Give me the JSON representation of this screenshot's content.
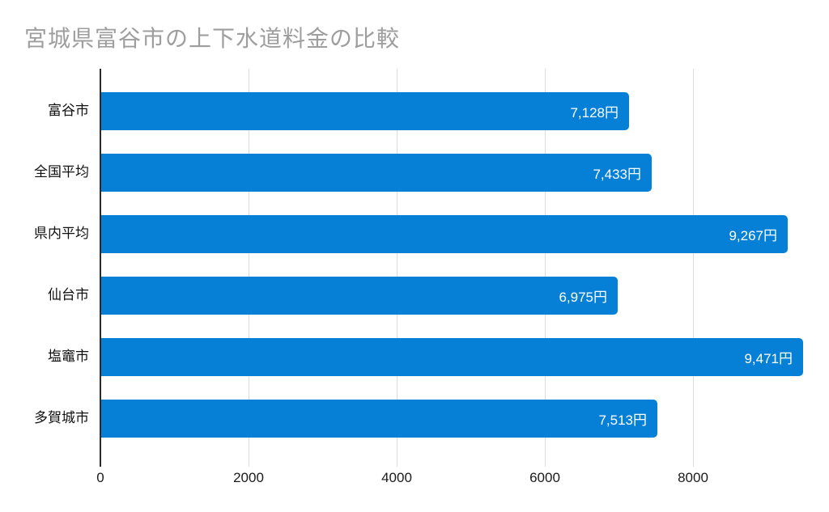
{
  "chart_data": {
    "type": "bar",
    "orientation": "horizontal",
    "title": "宮城県富谷市の上下水道料金の比較",
    "categories": [
      "富谷市",
      "全国平均",
      "県内平均",
      "仙台市",
      "塩竈市",
      "多賀城市"
    ],
    "values": [
      7128,
      7433,
      9267,
      6975,
      9471,
      7513
    ],
    "value_labels": [
      "7,128円",
      "7,433円",
      "9,267円",
      "6,975円",
      "9,471円",
      "7,513円"
    ],
    "x_ticks": [
      0,
      2000,
      4000,
      6000,
      8000
    ],
    "xlim": [
      0,
      9580
    ],
    "grid": true,
    "legend": "none",
    "xlabel": "",
    "ylabel": "",
    "bar_color": "#0580d6",
    "value_label_color": "#ffffff",
    "title_color": "#9e9e9e",
    "axis_color": "#2b2b2b",
    "gridline_color": "#dcdcdc"
  }
}
